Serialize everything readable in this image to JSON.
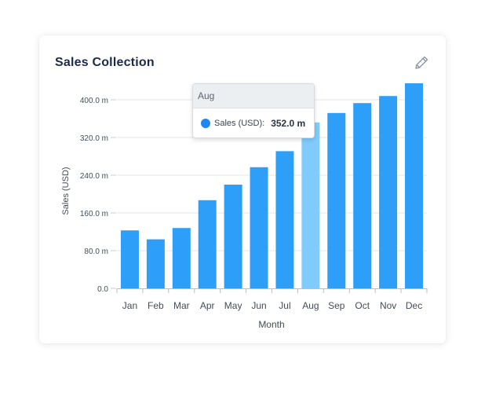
{
  "card": {
    "title": "Sales Collection",
    "edit_icon": "pencil-icon"
  },
  "tooltip": {
    "category": "Aug",
    "series_label": "Sales (USD):",
    "value_label": "352.0 m"
  },
  "colors": {
    "bar": "#2d9ff8",
    "bar_highlight": "#80cbfb",
    "title": "#1b2a4a",
    "grid": "#e6e6e6"
  },
  "chart_data": {
    "type": "bar",
    "title": "Sales Collection",
    "xlabel": "Month",
    "ylabel": "Sales (USD)",
    "categories": [
      "Jan",
      "Feb",
      "Mar",
      "Apr",
      "May",
      "Jun",
      "Jul",
      "Aug",
      "Sep",
      "Oct",
      "Nov",
      "Dec"
    ],
    "values": [
      123,
      104,
      128,
      187,
      220,
      257,
      291,
      352,
      372,
      393,
      408,
      435
    ],
    "ylim": [
      0,
      440
    ],
    "yticks": [
      0,
      80,
      160,
      240,
      320,
      400
    ],
    "ytick_labels": [
      "0.0",
      "80.0 m",
      "160.0 m",
      "240.0 m",
      "320.0 m",
      "400.0 m"
    ],
    "highlighted_category": "Aug",
    "grid": true
  }
}
